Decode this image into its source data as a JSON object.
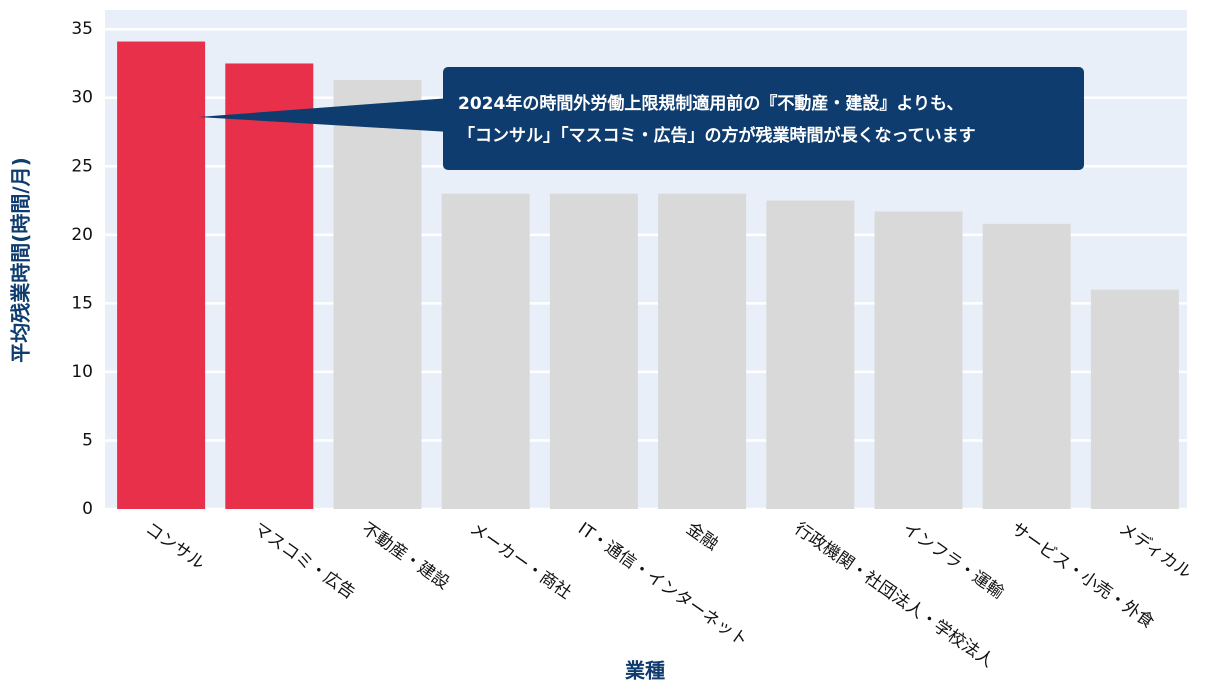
{
  "chart_data": {
    "type": "bar",
    "x_label": "業種",
    "y_label": "平均残業時間(時間/月)",
    "categories": [
      "コンサル",
      "マスコミ・広告",
      "不動産・建設",
      "メーカー・商社",
      "IT・通信・インターネット",
      "金融",
      "行政機関・社団法人・学校法人",
      "インフラ・運輸",
      "サービス・小売・外食",
      "メディカル"
    ],
    "values": [
      34.1,
      32.5,
      31.3,
      23.0,
      23.0,
      23.0,
      22.5,
      21.7,
      20.8,
      16.0
    ],
    "colors": [
      "#e8304b",
      "#e8304b",
      "#d9d9d9",
      "#d9d9d9",
      "#d9d9d9",
      "#d9d9d9",
      "#d9d9d9",
      "#d9d9d9",
      "#d9d9d9",
      "#d9d9d9"
    ],
    "ylim": [
      0,
      36.4
    ],
    "yticks": [
      0,
      5,
      10,
      15,
      20,
      25,
      30,
      35
    ],
    "grid": true,
    "annotation": [
      "2024年の時間外労働上限規制適用前の『不動産・建設』よりも、",
      "「コンサル」「マスコミ・広告」の方が残業時間が長くなっています"
    ]
  }
}
